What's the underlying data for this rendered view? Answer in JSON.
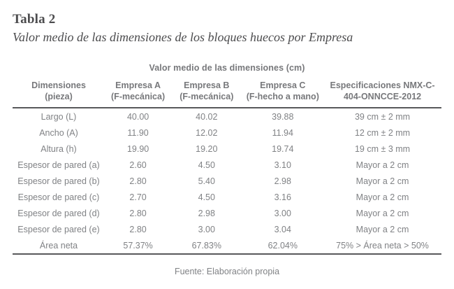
{
  "title": "Tabla 2",
  "subtitle": "Valor medio de las dimensiones de los bloques huecos por Empresa",
  "table": {
    "caption": "Valor medio de las dimensiones (cm)",
    "columns": [
      {
        "line1": "Dimensiones",
        "line2": "(pieza)"
      },
      {
        "line1": "Empresa A",
        "line2": "(F-mecánica)"
      },
      {
        "line1": "Empresa B",
        "line2": "(F-mecánica)"
      },
      {
        "line1": "Empresa C",
        "line2": "(F-hecho a mano)"
      },
      {
        "line1": "Especificaciones NMX-C-",
        "line2": "404-ONNCCE-2012"
      }
    ],
    "rows": [
      {
        "cells": [
          "Largo (L)",
          "40.00",
          "40.02",
          "39.88",
          "39 cm ± 2 mm"
        ]
      },
      {
        "cells": [
          "Ancho (A)",
          "11.90",
          "12.02",
          "11.94",
          "12 cm ± 2 mm"
        ]
      },
      {
        "cells": [
          "Altura (h)",
          "19.90",
          "19.20",
          "19.74",
          "19 cm ± 3 mm"
        ]
      },
      {
        "cells": [
          "Espesor de pared (a)",
          "2.60",
          "4.50",
          "3.10",
          "Mayor a 2 cm"
        ]
      },
      {
        "cells": [
          "Espesor de pared (b)",
          "2.80",
          "5.40",
          "2.98",
          "Mayor a 2 cm"
        ]
      },
      {
        "cells": [
          "Espesor de pared (c)",
          "2.70",
          "4.50",
          "3.16",
          "Mayor a 2 cm"
        ]
      },
      {
        "cells": [
          "Espesor de pared (d)",
          "2.80",
          "2.98",
          "3.00",
          "Mayor a 2 cm"
        ]
      },
      {
        "cells": [
          "Espesor de pared (e)",
          "2.80",
          "3.00",
          "3.04",
          "Mayor a 2 cm"
        ]
      },
      {
        "cells": [
          "Área neta",
          "57.37%",
          "67.83%",
          "62.04%",
          "75% > Área neta > 50%"
        ]
      }
    ]
  },
  "footer": "Fuente: Elaboración propia",
  "colors": {
    "title_text": "#4c4c4e",
    "table_text": "#808285",
    "header_text": "#77787b",
    "rule": "#58595b",
    "background": "#ffffff"
  }
}
